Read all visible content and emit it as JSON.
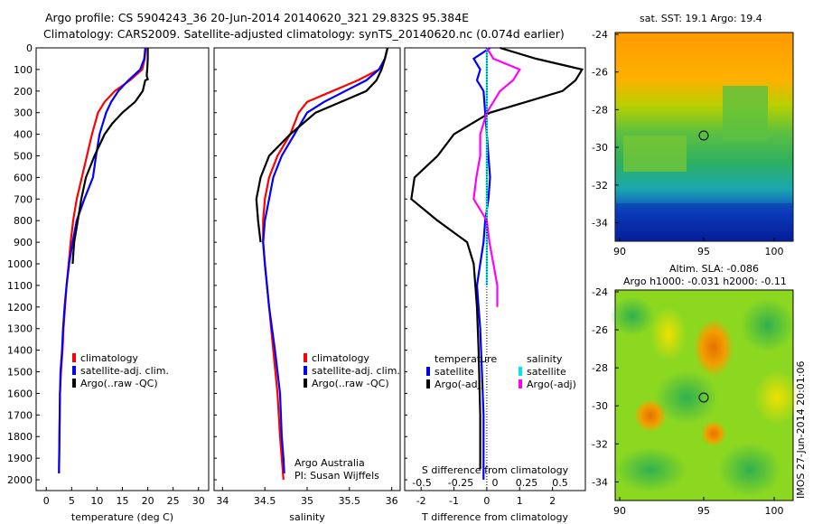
{
  "header": {
    "line1": "Argo profile: CS 5904243_36 20-Jun-2014 20140620_321 29.832S 95.384E",
    "line2": "Climatology: CARS2009. Satellite-adjusted climatology: synTS_20140620.nc (0.074d earlier)"
  },
  "colors": {
    "climatology": "#ff0000",
    "satellite": "#0000ff",
    "argo": "#000000",
    "salinity_satellite": "#00e5e5",
    "salinity_argo": "#ff00ff"
  },
  "chart_data": [
    {
      "type": "line",
      "xlabel": "temperature (deg C)",
      "xticks": [
        "0",
        "5",
        "10",
        "15",
        "20",
        "25",
        "30"
      ],
      "xlim": [
        -2,
        32
      ],
      "ylim": [
        0,
        2050
      ],
      "yticks": [
        "0",
        "100",
        "200",
        "300",
        "400",
        "500",
        "600",
        "700",
        "800",
        "900",
        "1000",
        "1100",
        "1200",
        "1300",
        "1400",
        "1500",
        "1600",
        "1700",
        "1800",
        "1900",
        "2000"
      ],
      "legend": [
        "climatology",
        "satellite-adj. clim.",
        "Argo(..raw -QC)"
      ],
      "series": [
        {
          "name": "climatology",
          "x": [
            19.6,
            19.4,
            18.9,
            16.5,
            13.5,
            11.5,
            10.2,
            9.0,
            8.0,
            7.0,
            6.0,
            5.3,
            4.8,
            4.4,
            4.0,
            3.7,
            3.4,
            3.2,
            2.9,
            2.7,
            2.6,
            2.5
          ],
          "y": [
            0,
            50,
            100,
            150,
            200,
            250,
            300,
            400,
            500,
            600,
            700,
            800,
            900,
            1000,
            1100,
            1200,
            1300,
            1400,
            1500,
            1600,
            1800,
            1970
          ]
        },
        {
          "name": "satellite-adj. clim.",
          "x": [
            19.5,
            19.3,
            18.5,
            16.2,
            14.2,
            12.8,
            11.8,
            10.5,
            9.8,
            9.2,
            7.5,
            6.0,
            5.2,
            4.5,
            4.0,
            3.6,
            3.3,
            3.1,
            2.8,
            2.7,
            2.6,
            2.5
          ],
          "y": [
            0,
            50,
            100,
            150,
            200,
            250,
            300,
            400,
            500,
            600,
            700,
            800,
            900,
            1000,
            1100,
            1200,
            1300,
            1400,
            1500,
            1600,
            1800,
            1970
          ]
        },
        {
          "name": "Argo(..raw -QC)",
          "x": [
            20.0,
            20.0,
            19.9,
            19.8,
            19.8,
            20.0,
            19.5,
            19.0,
            17.5,
            15.0,
            13.0,
            11.5,
            9.5,
            7.8,
            6.9,
            6.2,
            5.5,
            5.2
          ],
          "y": [
            0,
            50,
            100,
            120,
            130,
            145,
            150,
            200,
            250,
            300,
            350,
            400,
            500,
            600,
            700,
            800,
            900,
            1000
          ]
        }
      ]
    },
    {
      "type": "line",
      "xlabel": "salinity",
      "xticks": [
        "34",
        "34.5",
        "35",
        "35.5",
        "36"
      ],
      "xlim": [
        33.9,
        36.1
      ],
      "ylim": [
        0,
        2050
      ],
      "legend": [
        "climatology",
        "satellite-adj. clim.",
        "Argo(..raw -QC)"
      ],
      "annotation": [
        "Argo Australia",
        "PI: Susan Wijffels"
      ],
      "series": [
        {
          "name": "climatology",
          "x": [
            35.95,
            35.92,
            35.85,
            35.6,
            35.3,
            35.0,
            34.9,
            34.8,
            34.65,
            34.55,
            34.5,
            34.48,
            34.48,
            34.5,
            34.55,
            34.6,
            34.65,
            34.68,
            34.7,
            34.72
          ],
          "y": [
            0,
            50,
            100,
            150,
            200,
            250,
            300,
            400,
            500,
            600,
            700,
            800,
            900,
            1000,
            1200,
            1400,
            1600,
            1800,
            1900,
            2000
          ]
        },
        {
          "name": "satellite-adj. clim.",
          "x": [
            35.95,
            35.92,
            35.85,
            35.7,
            35.45,
            35.2,
            35.0,
            34.85,
            34.7,
            34.6,
            34.55,
            34.5,
            34.48,
            34.5,
            34.55,
            34.62,
            34.68,
            34.7,
            34.72,
            34.73
          ],
          "y": [
            0,
            50,
            100,
            150,
            200,
            250,
            300,
            400,
            500,
            600,
            700,
            800,
            900,
            1000,
            1200,
            1400,
            1600,
            1800,
            1900,
            1970
          ]
        },
        {
          "name": "Argo(..raw -QC)",
          "x": [
            35.95,
            35.92,
            35.88,
            35.82,
            35.7,
            35.4,
            35.1,
            34.8,
            34.55,
            34.45,
            34.4,
            34.42,
            34.45
          ],
          "y": [
            0,
            50,
            100,
            150,
            200,
            250,
            300,
            400,
            500,
            600,
            700,
            800,
            900
          ]
        }
      ]
    },
    {
      "type": "line",
      "xlabel": "T difference from climatology",
      "xlabel_top": "S difference from climatology",
      "xticks": [
        "-2",
        "-1",
        "0",
        "1",
        "2"
      ],
      "xticks_top": [
        "-0.5",
        "-0.25",
        "0",
        "0.25",
        "0.5"
      ],
      "xlim": [
        -2.5,
        3
      ],
      "ylim": [
        0,
        2050
      ],
      "legend_temperature": {
        "title": "temperature",
        "items": [
          "satellite",
          "Argo(-adj)"
        ]
      },
      "legend_salinity": {
        "title": "salinity",
        "items": [
          "satellite",
          "Argo(-adj)"
        ]
      },
      "series": [
        {
          "name": "temperature satellite",
          "x": [
            0.1,
            -0.4,
            -0.2,
            -0.3,
            -0.1,
            -0.05,
            0.0,
            0.05,
            0.1,
            0.05,
            -0.05,
            -0.1,
            -0.2,
            -0.3,
            -0.2,
            -0.15,
            -0.1,
            -0.1,
            -0.1
          ],
          "y": [
            0,
            50,
            100,
            150,
            200,
            300,
            400,
            500,
            600,
            700,
            800,
            900,
            1000,
            1100,
            1300,
            1500,
            1700,
            1900,
            2000
          ]
        },
        {
          "name": "temperature Argo(-adj)",
          "x": [
            0.4,
            1.5,
            2.9,
            2.7,
            2.3,
            1.2,
            0.1,
            -1.0,
            -1.5,
            -2.2,
            -2.3,
            -1.5,
            -0.6,
            -0.4,
            -0.3,
            -0.25,
            -0.2,
            -0.2
          ],
          "y": [
            0,
            50,
            100,
            150,
            200,
            250,
            300,
            400,
            500,
            600,
            700,
            800,
            900,
            1000,
            1200,
            1400,
            1700,
            1950
          ]
        },
        {
          "name": "salinity satellite",
          "x": [
            0.0,
            0.0,
            0.0,
            0.0,
            0.0,
            0.0,
            0.0,
            0.0,
            0.0,
            0.0,
            0.0,
            0.0
          ],
          "y": [
            0,
            100,
            200,
            300,
            400,
            500,
            600,
            700,
            800,
            900,
            1000,
            1100
          ]
        },
        {
          "name": "salinity Argo(-adj)",
          "x": [
            0.0,
            0.05,
            0.25,
            0.2,
            0.1,
            0.0,
            -0.05,
            -0.05,
            -0.08,
            -0.1,
            0.0,
            0.02,
            0.05,
            0.08,
            0.08
          ],
          "y": [
            0,
            50,
            100,
            150,
            200,
            300,
            400,
            500,
            600,
            700,
            800,
            900,
            1000,
            1100,
            1200
          ]
        }
      ]
    },
    {
      "type": "heatmap",
      "title": "sat. SST: 19.1 Argo: 19.4",
      "xticks": [
        "90",
        "95",
        "100"
      ],
      "yticks": [
        "-24",
        "-26",
        "-28",
        "-30",
        "-32",
        "-34"
      ]
    },
    {
      "type": "heatmap",
      "title_lines": [
        "Altim. SLA: -0.086",
        "Argo h1000: -0.031 h2000: -0.11"
      ],
      "xticks": [
        "90",
        "95",
        "100"
      ],
      "yticks": [
        "-24",
        "-26",
        "-28",
        "-30",
        "-32",
        "-34"
      ]
    }
  ],
  "side_label": "IMOS 27-Jun-2014 20:01:06"
}
